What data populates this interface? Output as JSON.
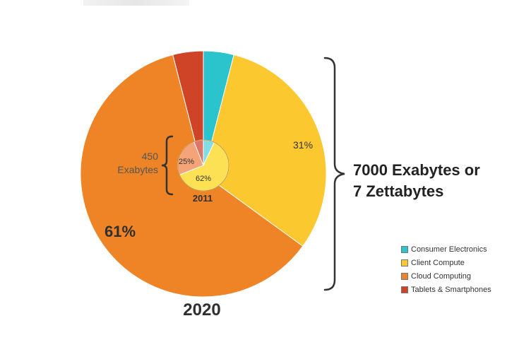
{
  "chart_data": [
    {
      "type": "pie",
      "xlabel": "2020",
      "series": [
        {
          "name": "Consumer Electronics",
          "value": 4,
          "color": "#2cc4cc"
        },
        {
          "name": "Client Compute",
          "value": 31,
          "color": "#fcc830",
          "label": "31%"
        },
        {
          "name": "Cloud Computing",
          "value": 61,
          "color": "#ef8427",
          "label": "61%"
        },
        {
          "name": "Tablets & Smartphones",
          "value": 4,
          "color": "#cf4427"
        }
      ]
    },
    {
      "type": "pie",
      "xlabel": "2011",
      "series": [
        {
          "name": "Consumer Electronics",
          "value": 7,
          "color": "#7fdde3"
        },
        {
          "name": "Client Compute",
          "value": 62,
          "color": "#fde155",
          "label": "62%"
        },
        {
          "name": "Cloud Computing",
          "value": 25,
          "color": "#f4a478",
          "label": "25%"
        },
        {
          "name": "Tablets & Smartphones",
          "value": 6,
          "color": "#e07466"
        }
      ]
    }
  ],
  "annotations": {
    "total_2020": [
      "7000 Exabytes or",
      "7 Zettabytes"
    ],
    "total_2011": [
      "450",
      "Exabytes"
    ]
  },
  "legend": [
    {
      "label": "Consumer Electronics",
      "color": "#2cc4cc"
    },
    {
      "label": "Client Compute",
      "color": "#fcc830"
    },
    {
      "label": "Cloud Computing",
      "color": "#ef8427"
    },
    {
      "label": "Tablets & Smartphones",
      "color": "#cf4427"
    }
  ]
}
